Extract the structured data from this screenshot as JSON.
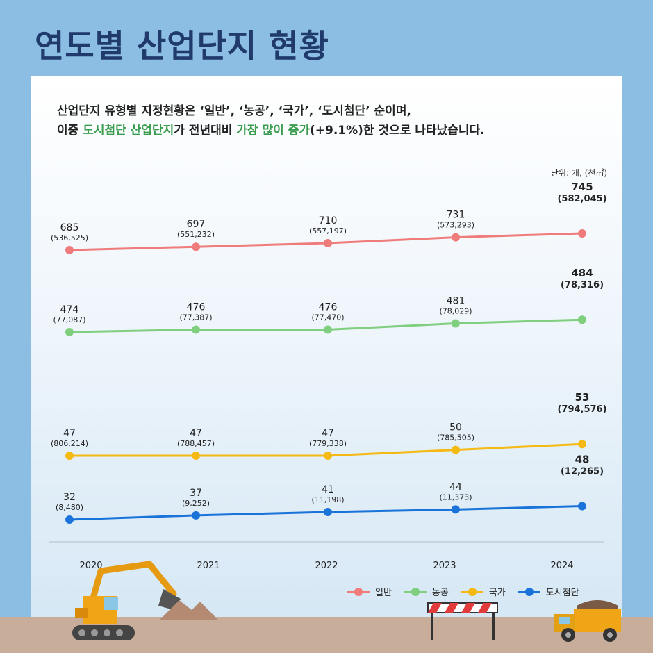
{
  "title": "연도별 산업단지 현황",
  "description": {
    "line1": "산업단지 유형별 지정현황은 ‘일반’, ‘농공’, ‘국가’, ‘도시첨단’ 순이며,",
    "line2_a": "이중 ",
    "line2_hl1": "도시첨단 산업단지",
    "line2_b": "가 전년대비 ",
    "line2_hl2": "가장 많이 증가",
    "line2_c": "(+9.1%)한 것으로 나타났습니다."
  },
  "unit": "단위: 개, (천㎡)",
  "colors": {
    "title": "#1f3a6b",
    "highlight": "#3a9c4e",
    "일반": "#f07b7b",
    "농공": "#7fcf7f",
    "국가": "#f5b914",
    "도시첨단": "#1a73d9"
  },
  "chart_data": {
    "type": "line",
    "x": [
      "2020",
      "2021",
      "2022",
      "2023",
      "2024"
    ],
    "series": [
      {
        "name": "일반",
        "color": "#f07b7b",
        "values": [
          685,
          697,
          710,
          731,
          745
        ],
        "area": [
          "(536,525)",
          "(551,232)",
          "(557,197)",
          "(573,293)",
          "(582,045)"
        ]
      },
      {
        "name": "농공",
        "color": "#7fcf7f",
        "values": [
          474,
          476,
          476,
          481,
          484
        ],
        "area": [
          "(77,087)",
          "(77,387)",
          "(77,470)",
          "(78,029)",
          "(78,316)"
        ]
      },
      {
        "name": "국가",
        "color": "#f5b914",
        "values": [
          47,
          47,
          47,
          50,
          53
        ],
        "area": [
          "(806,214)",
          "(788,457)",
          "(779,338)",
          "(785,505)",
          "(794,576)"
        ]
      },
      {
        "name": "도시첨단",
        "color": "#1a73d9",
        "values": [
          32,
          37,
          41,
          44,
          48
        ],
        "area": [
          "(8,480)",
          "(9,252)",
          "(11,198)",
          "(11,373)",
          "(12,265)"
        ]
      }
    ],
    "legend_position": "bottom-right"
  },
  "decor_icons": [
    "excavator-icon",
    "sand-pile-icon",
    "road-barrier-icon",
    "dump-truck-icon"
  ]
}
